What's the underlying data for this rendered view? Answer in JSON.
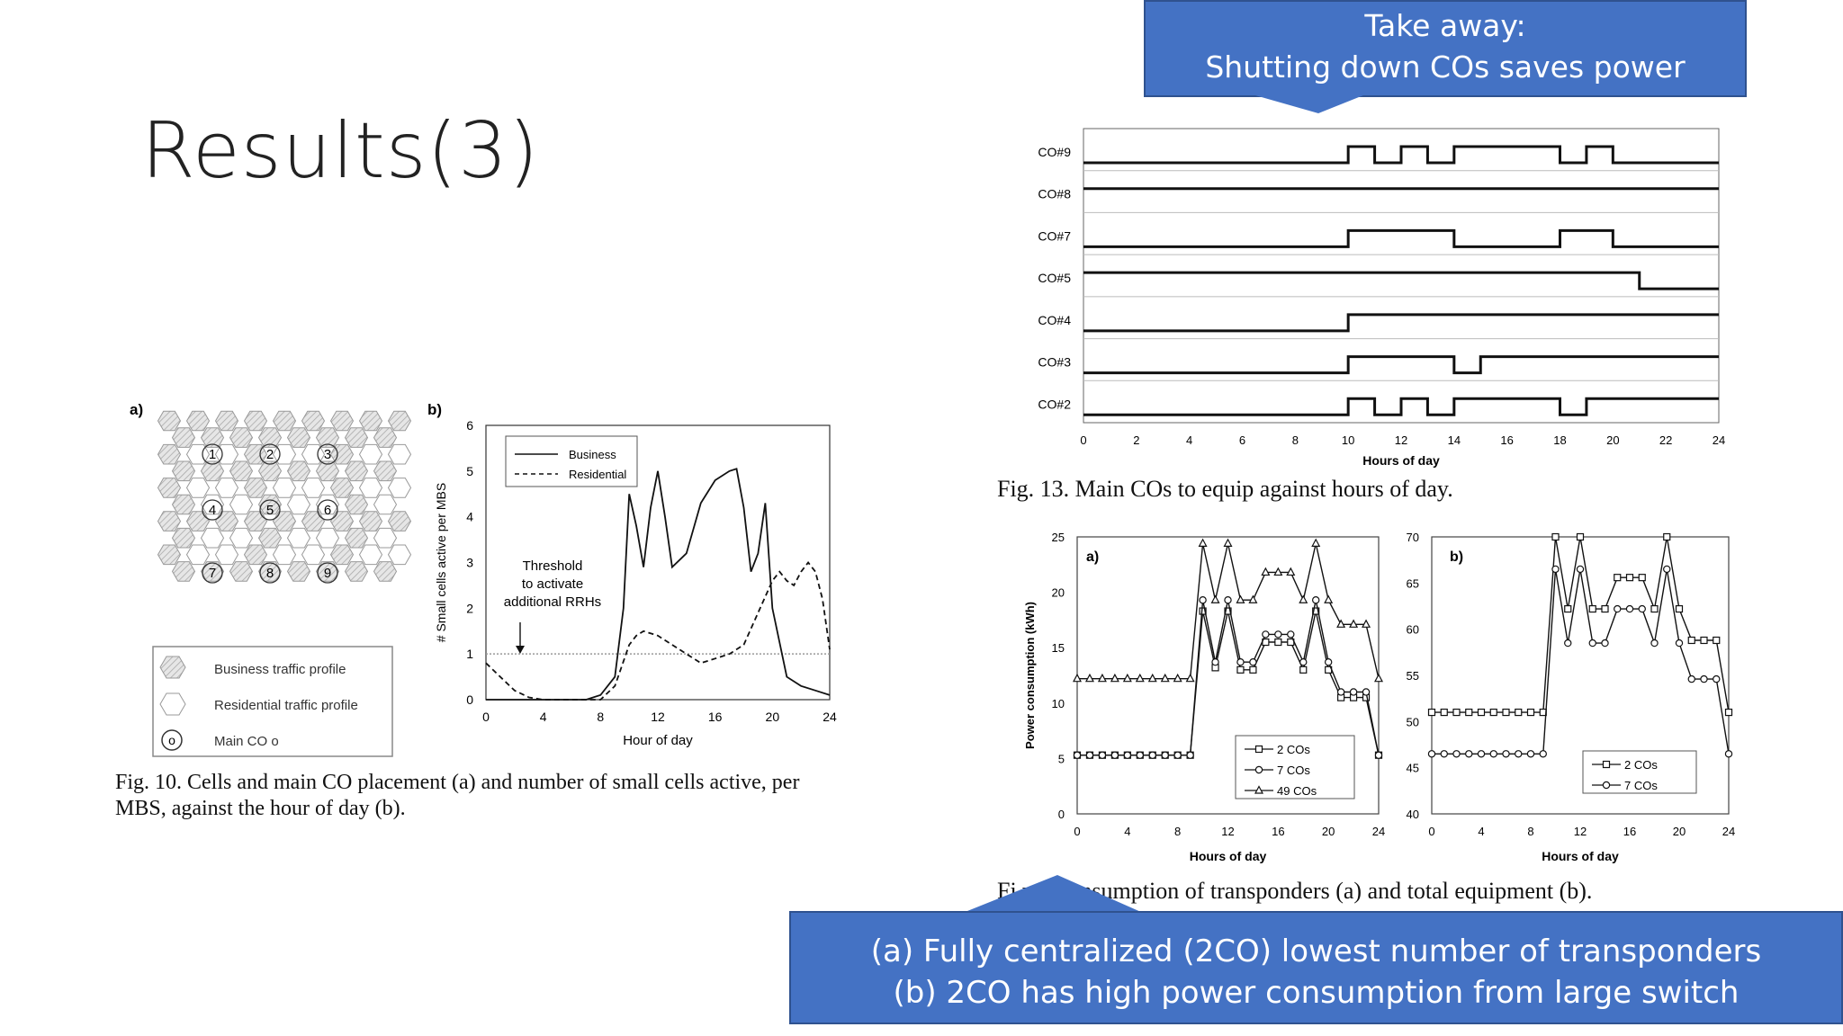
{
  "slide": {
    "title": "Results(3)",
    "callout_top": [
      "Take away:",
      "Shutting down COs saves power"
    ],
    "callout_bottom": [
      "(a)  Fully centralized (2CO) lowest number of transponders",
      "(b)   2CO has high power consumption from large switch"
    ],
    "accent_color": "#4472C4"
  },
  "fig10": {
    "panel_a_label": "a)",
    "panel_b_label": "b)",
    "cell_numbers": [
      "1",
      "2",
      "3",
      "4",
      "5",
      "6",
      "7",
      "8",
      "9"
    ],
    "legend": [
      "Business traffic profile",
      "Residential traffic profile",
      "Main CO o"
    ],
    "legend_co_glyph": "o",
    "caption": "Fig. 10. Cells and main CO placement (a) and number of small cells active, per MBS, against the hour of day (b).",
    "threshold_text": [
      "Threshold",
      "to activate",
      "additional RRHs"
    ]
  },
  "fig13": {
    "caption": "Fig. 13. Main COs to equip against hours of day."
  },
  "fig14": {
    "caption_visible": "Fi      ver consumption of transponders (a) and total equipment (b).",
    "panel_a_label": "a)",
    "panel_b_label": "b)"
  },
  "chart_data": [
    {
      "id": "fig10b",
      "type": "line",
      "xlabel": "Hour of day",
      "ylabel": "# Small cells active per MBS",
      "xlim": [
        0,
        24
      ],
      "ylim": [
        0,
        6
      ],
      "xticks": [
        0,
        4,
        8,
        12,
        16,
        20,
        24
      ],
      "yticks": [
        0,
        1,
        2,
        3,
        4,
        5,
        6
      ],
      "threshold": 1,
      "series": [
        {
          "name": "Business",
          "style": "solid",
          "x": [
            0,
            2,
            4,
            6,
            7,
            8,
            9,
            9.6,
            10,
            10.5,
            11,
            11.5,
            12,
            12.5,
            13,
            14,
            15,
            16,
            17,
            17.5,
            18,
            18.5,
            19,
            19.5,
            20,
            21,
            22,
            23,
            24
          ],
          "y": [
            0,
            0,
            0,
            0,
            0,
            0.1,
            0.5,
            2.0,
            4.5,
            3.8,
            2.9,
            4.2,
            5.0,
            4.0,
            2.9,
            3.2,
            4.3,
            4.8,
            5.0,
            5.05,
            4.2,
            2.8,
            3.2,
            4.3,
            2.0,
            0.5,
            0.3,
            0.2,
            0.1
          ]
        },
        {
          "name": "Residential",
          "style": "dashed",
          "x": [
            0,
            1,
            2,
            3,
            4,
            6,
            8,
            9,
            10,
            10.5,
            11,
            12,
            13,
            14,
            15,
            16,
            17,
            18,
            19,
            20,
            20.5,
            21,
            21.5,
            22,
            22.5,
            23,
            23.5,
            24
          ],
          "y": [
            0.8,
            0.5,
            0.2,
            0.05,
            0,
            0,
            0,
            0.3,
            1.2,
            1.4,
            1.5,
            1.4,
            1.2,
            1.0,
            0.8,
            0.9,
            1.0,
            1.2,
            1.9,
            2.6,
            2.8,
            2.6,
            2.5,
            2.8,
            3.0,
            2.8,
            2.2,
            1.1
          ]
        }
      ],
      "annotation": "Threshold to activate additional RRHs"
    },
    {
      "id": "fig13",
      "type": "line",
      "xlabel": "Hours of day",
      "xlim": [
        0,
        24
      ],
      "xticks": [
        0,
        2,
        4,
        6,
        8,
        10,
        12,
        14,
        16,
        18,
        20,
        22,
        24
      ],
      "series": [
        {
          "name": "CO#9",
          "transitions": [
            [
              0,
              0
            ],
            [
              10,
              1
            ],
            [
              11,
              0
            ],
            [
              12,
              1
            ],
            [
              13,
              0
            ],
            [
              14,
              1
            ],
            [
              18,
              0
            ],
            [
              19,
              1
            ],
            [
              20,
              0
            ]
          ]
        },
        {
          "name": "CO#8",
          "transitions": [
            [
              0,
              1
            ]
          ]
        },
        {
          "name": "CO#7",
          "transitions": [
            [
              0,
              0
            ],
            [
              10,
              1
            ],
            [
              14,
              0
            ],
            [
              18,
              1
            ],
            [
              20,
              0
            ]
          ]
        },
        {
          "name": "CO#5",
          "transitions": [
            [
              0,
              1
            ],
            [
              21,
              0
            ]
          ]
        },
        {
          "name": "CO#4",
          "transitions": [
            [
              0,
              0
            ],
            [
              10,
              1
            ]
          ]
        },
        {
          "name": "CO#3",
          "transitions": [
            [
              0,
              0
            ],
            [
              10,
              1
            ],
            [
              14,
              0
            ],
            [
              15,
              1
            ]
          ]
        },
        {
          "name": "CO#2",
          "transitions": [
            [
              0,
              0
            ],
            [
              10,
              1
            ],
            [
              11,
              0
            ],
            [
              12,
              1
            ],
            [
              13,
              0
            ],
            [
              14,
              1
            ],
            [
              18,
              0
            ],
            [
              19,
              1
            ]
          ]
        }
      ]
    },
    {
      "id": "fig14a",
      "type": "line",
      "xlabel": "Hours of day",
      "ylabel": "Power consumption (kWh)",
      "xlim": [
        0,
        24
      ],
      "ylim": [
        0,
        25
      ],
      "xticks": [
        0,
        4,
        8,
        12,
        16,
        20,
        24
      ],
      "yticks": [
        0,
        5,
        10,
        15,
        20,
        25
      ],
      "x": [
        0,
        1,
        2,
        3,
        4,
        5,
        6,
        7,
        8,
        9,
        10,
        11,
        12,
        13,
        14,
        15,
        16,
        17,
        18,
        19,
        20,
        21,
        22,
        23,
        24
      ],
      "series": [
        {
          "name": "2 COs",
          "marker": "square",
          "values": [
            5.3,
            5.3,
            5.3,
            5.3,
            5.3,
            5.3,
            5.3,
            5.3,
            5.3,
            5.3,
            18.3,
            13.2,
            18.3,
            13.0,
            13.0,
            15.5,
            15.5,
            15.5,
            13.0,
            18.3,
            13.0,
            10.5,
            10.5,
            10.5,
            5.3
          ]
        },
        {
          "name": "7 COs",
          "marker": "circle",
          "values": [
            5.3,
            5.3,
            5.3,
            5.3,
            5.3,
            5.3,
            5.3,
            5.3,
            5.3,
            5.3,
            19.3,
            13.7,
            19.3,
            13.7,
            13.7,
            16.2,
            16.2,
            16.2,
            13.7,
            19.3,
            13.7,
            11.0,
            11.0,
            11.0,
            5.3
          ]
        },
        {
          "name": "49 COs",
          "marker": "triangle",
          "values": [
            12.2,
            12.2,
            12.2,
            12.2,
            12.2,
            12.2,
            12.2,
            12.2,
            12.2,
            12.2,
            24.4,
            19.3,
            24.4,
            19.3,
            19.3,
            21.8,
            21.8,
            21.8,
            19.3,
            24.4,
            19.3,
            17.1,
            17.1,
            17.1,
            12.2
          ]
        }
      ]
    },
    {
      "id": "fig14b",
      "type": "line",
      "xlabel": "Hours of day",
      "xlim": [
        0,
        24
      ],
      "ylim": [
        40,
        70
      ],
      "xticks": [
        0,
        4,
        8,
        12,
        16,
        20,
        24
      ],
      "yticks": [
        40,
        45,
        50,
        55,
        60,
        65,
        70
      ],
      "x": [
        0,
        1,
        2,
        3,
        4,
        5,
        6,
        7,
        8,
        9,
        10,
        11,
        12,
        13,
        14,
        15,
        16,
        17,
        18,
        19,
        20,
        21,
        22,
        23,
        24
      ],
      "series": [
        {
          "name": "2 COs",
          "marker": "square",
          "values": [
            51.0,
            51.0,
            51.0,
            51.0,
            51.0,
            51.0,
            51.0,
            51.0,
            51.0,
            51.0,
            70.0,
            62.2,
            70.0,
            62.2,
            62.2,
            65.6,
            65.6,
            65.6,
            62.2,
            70.0,
            62.2,
            58.8,
            58.8,
            58.8,
            51.0
          ]
        },
        {
          "name": "7 COs",
          "marker": "circle",
          "values": [
            46.5,
            46.5,
            46.5,
            46.5,
            46.5,
            46.5,
            46.5,
            46.5,
            46.5,
            46.5,
            66.5,
            58.5,
            66.5,
            58.5,
            58.5,
            62.2,
            62.2,
            62.2,
            58.5,
            66.5,
            58.5,
            54.6,
            54.6,
            54.6,
            46.5
          ]
        }
      ]
    }
  ]
}
